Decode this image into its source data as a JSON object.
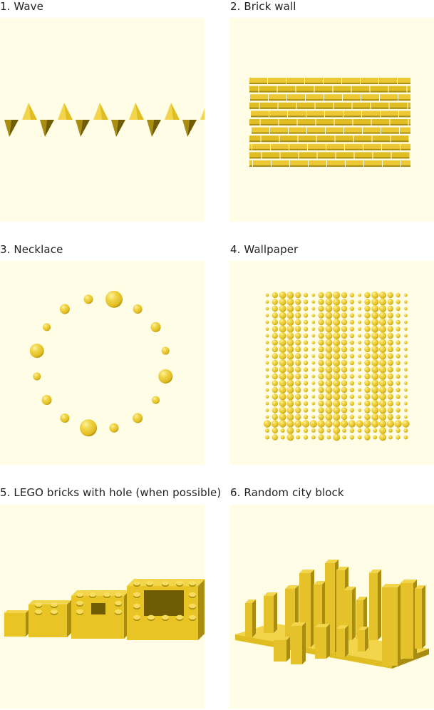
{
  "panels": [
    {
      "caption": "1. Wave",
      "scene": "wave"
    },
    {
      "caption": "2. Brick wall",
      "scene": "brick-wall"
    },
    {
      "caption": "3. Necklace",
      "scene": "necklace"
    },
    {
      "caption": "4. Wallpaper",
      "scene": "wallpaper"
    },
    {
      "caption": "5. LEGO bricks with hole (when possible)",
      "scene": "lego-bricks"
    },
    {
      "caption": "6. Random city block",
      "scene": "city-block"
    }
  ],
  "colors": {
    "panel_bg": "#fffde6",
    "model_light": "#f2d54a",
    "model_mid": "#e0bd20",
    "model_dark": "#a98d10",
    "model_shadow": "#6f5c05"
  }
}
